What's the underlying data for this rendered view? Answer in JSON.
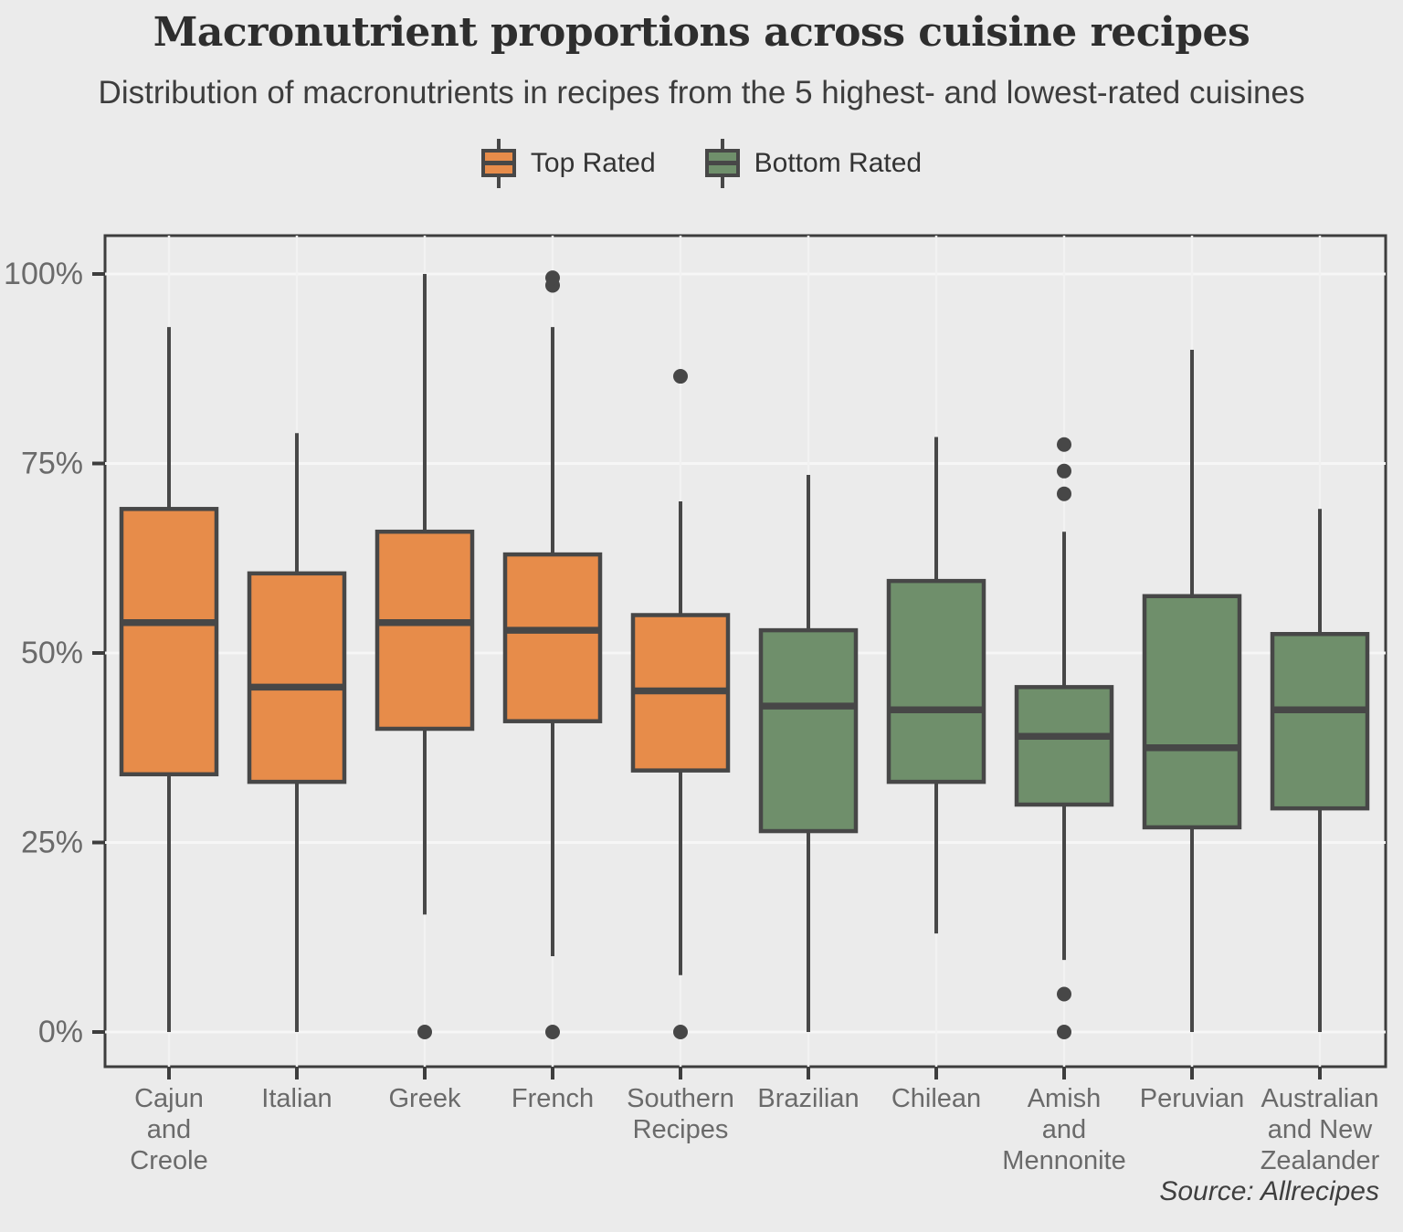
{
  "header": {
    "title": "Macronutrient proportions across cuisine recipes",
    "subtitle": "Distribution of macronutrients in recipes from the 5 highest- and lowest-rated cuisines"
  },
  "legend": {
    "items": [
      {
        "label": "Top Rated",
        "color": "#e78c4a"
      },
      {
        "label": "Bottom Rated",
        "color": "#6f8f6b"
      }
    ]
  },
  "source": "Source: Allrecipes",
  "chart_data": {
    "type": "box",
    "title": "Macronutrient proportions across cuisine recipes",
    "xlabel": "",
    "ylabel": "",
    "ylim": [
      0,
      100
    ],
    "grid": true,
    "legend_position": "top-center",
    "yticks": [
      {
        "value": 0,
        "label": "0%"
      },
      {
        "value": 25,
        "label": "25%"
      },
      {
        "value": 50,
        "label": "50%"
      },
      {
        "value": 75,
        "label": "75%"
      },
      {
        "value": 100,
        "label": "100%"
      }
    ],
    "colors": {
      "Top Rated": "#e78c4a",
      "Bottom Rated": "#6f8f6b",
      "stroke": "#474747",
      "panel_border": "#3d3d3d",
      "gridline": "#f6f6f6",
      "axis_text": "#6a6a6a"
    },
    "boxes": [
      {
        "category": "Cajun and Creole",
        "label_lines": [
          "Cajun",
          "and",
          "Creole"
        ],
        "group": "Top Rated",
        "whisker_low": 0,
        "q1": 34,
        "median": 54,
        "q3": 69,
        "whisker_high": 93,
        "outliers": []
      },
      {
        "category": "Italian",
        "label_lines": [
          "Italian"
        ],
        "group": "Top Rated",
        "whisker_low": 0,
        "q1": 33,
        "median": 45.5,
        "q3": 60.5,
        "whisker_high": 79,
        "outliers": []
      },
      {
        "category": "Greek",
        "label_lines": [
          "Greek"
        ],
        "group": "Top Rated",
        "whisker_low": 15.5,
        "q1": 40,
        "median": 54,
        "q3": 66,
        "whisker_high": 100,
        "outliers": [
          0
        ]
      },
      {
        "category": "French",
        "label_lines": [
          "French"
        ],
        "group": "Top Rated",
        "whisker_low": 10,
        "q1": 41,
        "median": 53,
        "q3": 63,
        "whisker_high": 93,
        "outliers": [
          0,
          98.5,
          99.5
        ]
      },
      {
        "category": "Southern Recipes",
        "label_lines": [
          "Southern",
          "Recipes"
        ],
        "group": "Top Rated",
        "whisker_low": 7.5,
        "q1": 34.5,
        "median": 45,
        "q3": 55,
        "whisker_high": 70,
        "outliers": [
          0,
          86.5
        ]
      },
      {
        "category": "Brazilian",
        "label_lines": [
          "Brazilian"
        ],
        "group": "Bottom Rated",
        "whisker_low": 0,
        "q1": 26.5,
        "median": 43,
        "q3": 53,
        "whisker_high": 73.5,
        "outliers": []
      },
      {
        "category": "Chilean",
        "label_lines": [
          "Chilean"
        ],
        "group": "Bottom Rated",
        "whisker_low": 13,
        "q1": 33,
        "median": 42.5,
        "q3": 59.5,
        "whisker_high": 78.5,
        "outliers": []
      },
      {
        "category": "Amish and Mennonite",
        "label_lines": [
          "Amish",
          "and",
          "Mennonite"
        ],
        "group": "Bottom Rated",
        "whisker_low": 9.5,
        "q1": 30,
        "median": 39,
        "q3": 45.5,
        "whisker_high": 66,
        "outliers": [
          0,
          5,
          71,
          74,
          77.5
        ]
      },
      {
        "category": "Peruvian",
        "label_lines": [
          "Peruvian"
        ],
        "group": "Bottom Rated",
        "whisker_low": 0,
        "q1": 27,
        "median": 37.5,
        "q3": 57.5,
        "whisker_high": 90,
        "outliers": []
      },
      {
        "category": "Australian and New Zealander",
        "label_lines": [
          "Australian",
          "and New",
          "Zealander"
        ],
        "group": "Bottom Rated",
        "whisker_low": 0,
        "q1": 29.5,
        "median": 42.5,
        "q3": 52.5,
        "whisker_high": 69,
        "outliers": []
      }
    ]
  }
}
